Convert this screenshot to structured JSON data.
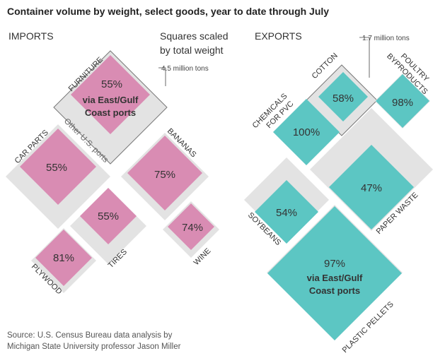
{
  "title": "Container volume by weight, select goods, year to date through July",
  "imports_label": "IMPORTS",
  "exports_label": "EXPORTS",
  "legend": {
    "line1": "Squares scaled",
    "line2": "by total weight",
    "imports_ref": "4.5 million tons",
    "exports_ref": "1.7 million tons"
  },
  "gulf_label": [
    "via East/Gulf",
    "Coast ports"
  ],
  "other_label": "Other U.S. ports",
  "source": {
    "line1": "Source: U.S. Census Bureau data analysis by",
    "line2": "Michigan State University professor Jason Miller"
  },
  "colors": {
    "imports_share": "#d98cb3",
    "exports_share": "#5cc6c3",
    "total": "#e3e3e3",
    "outline": "#777777"
  },
  "chart_data": [
    {
      "type": "diagram",
      "title": "IMPORTS",
      "items": [
        {
          "name": "FURNITURE",
          "share_pct": 55,
          "value": "55%"
        },
        {
          "name": "CAR PARTS",
          "share_pct": 55,
          "value": "55%"
        },
        {
          "name": "BANANAS",
          "share_pct": 75,
          "value": "75%"
        },
        {
          "name": "TIRES",
          "share_pct": 55,
          "value": "55%"
        },
        {
          "name": "WINE",
          "share_pct": 74,
          "value": "74%"
        },
        {
          "name": "PLYWOOD",
          "share_pct": 81,
          "value": "81%"
        }
      ]
    },
    {
      "type": "diagram",
      "title": "EXPORTS",
      "items": [
        {
          "name": "COTTON",
          "share_pct": 58,
          "value": "58%"
        },
        {
          "name": "POULTRY BYPRODUCTS",
          "share_pct": 98,
          "value": "98%"
        },
        {
          "name": "CHEMICALS FOR PVC",
          "share_pct": 100,
          "value": "100%"
        },
        {
          "name": "SOYBEANS",
          "share_pct": 54,
          "value": "54%"
        },
        {
          "name": "PAPER WASTE",
          "share_pct": 47,
          "value": "47%"
        },
        {
          "name": "PLASTIC PELLETS",
          "share_pct": 97,
          "value": "97%"
        }
      ]
    }
  ]
}
